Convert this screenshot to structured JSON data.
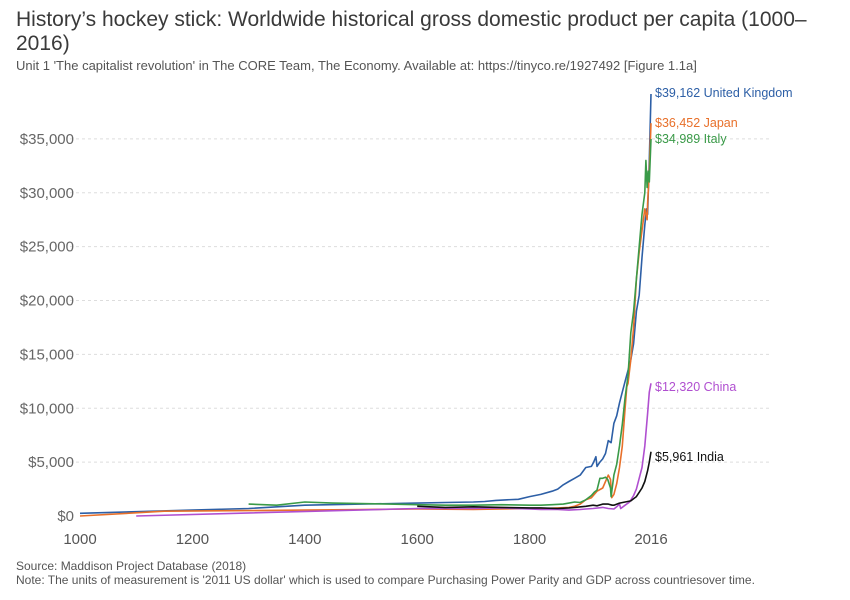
{
  "header": {
    "title": "History’s hockey stick: Worldwide historical gross domestic product per capita (1000–2016)",
    "subtitle": "Unit 1 'The capitalist revolution' in The CORE Team, The Economy. Available at: https://tinyco.re/1927492 [Figure 1.1a]"
  },
  "footer": {
    "source": "Source: Maddison Project Database (2018)",
    "note": "Note: The units of measurement is '2011 US dollar' which is used to compare Purchasing Power Parity and GDP across countriesover time."
  },
  "chart_data": {
    "type": "line",
    "xlim": [
      1000,
      2016
    ],
    "ylim": [
      0,
      40000
    ],
    "x_ticks": [
      {
        "value": 1000,
        "label": "1000"
      },
      {
        "value": 1200,
        "label": "1200"
      },
      {
        "value": 1400,
        "label": "1400"
      },
      {
        "value": 1600,
        "label": "1600"
      },
      {
        "value": 1800,
        "label": "1800"
      },
      {
        "value": 2016,
        "label": "2016"
      }
    ],
    "y_ticks": [
      {
        "value": 0,
        "label": "$0"
      },
      {
        "value": 5000,
        "label": "$5,000"
      },
      {
        "value": 10000,
        "label": "$10,000"
      },
      {
        "value": 15000,
        "label": "$15,000"
      },
      {
        "value": 20000,
        "label": "$20,000"
      },
      {
        "value": 25000,
        "label": "$25,000"
      },
      {
        "value": 30000,
        "label": "$30,000"
      },
      {
        "value": 35000,
        "label": "$35,000"
      }
    ],
    "grid": "horizontal dashed",
    "series": [
      {
        "name": "United Kingdom",
        "color": "#2d5fa6",
        "end_label": "$39,162 United Kingdom",
        "points": [
          [
            1000,
            250
          ],
          [
            1100,
            400
          ],
          [
            1200,
            550
          ],
          [
            1300,
            700
          ],
          [
            1400,
            1000
          ],
          [
            1500,
            1100
          ],
          [
            1600,
            1200
          ],
          [
            1650,
            1250
          ],
          [
            1700,
            1300
          ],
          [
            1720,
            1350
          ],
          [
            1740,
            1450
          ],
          [
            1760,
            1500
          ],
          [
            1780,
            1550
          ],
          [
            1800,
            1800
          ],
          [
            1820,
            2000
          ],
          [
            1840,
            2300
          ],
          [
            1850,
            2500
          ],
          [
            1860,
            2900
          ],
          [
            1870,
            3200
          ],
          [
            1880,
            3500
          ],
          [
            1890,
            3800
          ],
          [
            1900,
            4500
          ],
          [
            1910,
            4600
          ],
          [
            1914,
            5000
          ],
          [
            1918,
            5500
          ],
          [
            1920,
            4600
          ],
          [
            1925,
            5000
          ],
          [
            1930,
            5300
          ],
          [
            1935,
            5800
          ],
          [
            1940,
            7000
          ],
          [
            1945,
            6800
          ],
          [
            1950,
            8600
          ],
          [
            1955,
            9300
          ],
          [
            1960,
            10500
          ],
          [
            1965,
            11500
          ],
          [
            1970,
            12500
          ],
          [
            1975,
            13500
          ],
          [
            1980,
            14500
          ],
          [
            1985,
            16000
          ],
          [
            1990,
            19000
          ],
          [
            1995,
            20500
          ],
          [
            2000,
            24000
          ],
          [
            2005,
            27000
          ],
          [
            2008,
            28500
          ],
          [
            2010,
            28000
          ],
          [
            2013,
            33000
          ],
          [
            2016,
            39162
          ]
        ]
      },
      {
        "name": "Japan",
        "color": "#e8702a",
        "end_label": "$36,452 Japan",
        "points": [
          [
            1000,
            0
          ],
          [
            1150,
            450
          ],
          [
            1300,
            500
          ],
          [
            1400,
            550
          ],
          [
            1500,
            600
          ],
          [
            1600,
            650
          ],
          [
            1700,
            600
          ],
          [
            1750,
            650
          ],
          [
            1800,
            700
          ],
          [
            1820,
            700
          ],
          [
            1850,
            750
          ],
          [
            1870,
            800
          ],
          [
            1880,
            900
          ],
          [
            1890,
            1100
          ],
          [
            1900,
            1500
          ],
          [
            1910,
            1700
          ],
          [
            1920,
            2300
          ],
          [
            1930,
            2600
          ],
          [
            1935,
            3200
          ],
          [
            1940,
            3800
          ],
          [
            1944,
            3400
          ],
          [
            1946,
            1700
          ],
          [
            1950,
            2000
          ],
          [
            1955,
            3000
          ],
          [
            1960,
            4500
          ],
          [
            1965,
            6500
          ],
          [
            1970,
            10000
          ],
          [
            1973,
            12000
          ],
          [
            1975,
            12300
          ],
          [
            1980,
            14500
          ],
          [
            1985,
            17500
          ],
          [
            1990,
            22000
          ],
          [
            1995,
            24500
          ],
          [
            2000,
            26500
          ],
          [
            2005,
            28500
          ],
          [
            2009,
            27500
          ],
          [
            2010,
            29000
          ],
          [
            2013,
            32000
          ],
          [
            2016,
            36452
          ]
        ]
      },
      {
        "name": "Italy",
        "color": "#3a9a48",
        "end_label": "$34,989 Italy",
        "points": [
          [
            1300,
            1100
          ],
          [
            1350,
            1000
          ],
          [
            1400,
            1300
          ],
          [
            1450,
            1200
          ],
          [
            1500,
            1150
          ],
          [
            1550,
            1100
          ],
          [
            1600,
            1050
          ],
          [
            1650,
            1000
          ],
          [
            1700,
            1000
          ],
          [
            1750,
            1050
          ],
          [
            1800,
            1000
          ],
          [
            1820,
            1000
          ],
          [
            1840,
            1050
          ],
          [
            1860,
            1100
          ],
          [
            1870,
            1200
          ],
          [
            1880,
            1300
          ],
          [
            1890,
            1250
          ],
          [
            1900,
            1500
          ],
          [
            1910,
            1900
          ],
          [
            1915,
            2200
          ],
          [
            1920,
            2400
          ],
          [
            1925,
            3500
          ],
          [
            1930,
            3500
          ],
          [
            1935,
            3600
          ],
          [
            1939,
            3400
          ],
          [
            1944,
            2600
          ],
          [
            1945,
            1800
          ],
          [
            1950,
            3800
          ],
          [
            1955,
            4800
          ],
          [
            1960,
            6500
          ],
          [
            1965,
            8500
          ],
          [
            1970,
            11000
          ],
          [
            1975,
            13000
          ],
          [
            1980,
            17000
          ],
          [
            1985,
            19000
          ],
          [
            1990,
            22000
          ],
          [
            1995,
            25000
          ],
          [
            2000,
            28000
          ],
          [
            2005,
            30000
          ],
          [
            2007,
            33000
          ],
          [
            2009,
            30500
          ],
          [
            2011,
            32000
          ],
          [
            2013,
            31000
          ],
          [
            2016,
            34989
          ]
        ]
      },
      {
        "name": "China",
        "color": "#b04fd0",
        "end_label": "$12,320 China",
        "points": [
          [
            1100,
            0
          ],
          [
            1600,
            700
          ],
          [
            1700,
            700
          ],
          [
            1750,
            750
          ],
          [
            1800,
            650
          ],
          [
            1820,
            600
          ],
          [
            1850,
            600
          ],
          [
            1870,
            550
          ],
          [
            1890,
            600
          ],
          [
            1900,
            650
          ],
          [
            1913,
            700
          ],
          [
            1930,
            800
          ],
          [
            1940,
            700
          ],
          [
            1950,
            650
          ],
          [
            1955,
            850
          ],
          [
            1960,
            1100
          ],
          [
            1962,
            700
          ],
          [
            1970,
            1000
          ],
          [
            1978,
            1300
          ],
          [
            1985,
            1900
          ],
          [
            1990,
            2500
          ],
          [
            1995,
            3500
          ],
          [
            2000,
            4500
          ],
          [
            2005,
            6500
          ],
          [
            2010,
            9500
          ],
          [
            2013,
            11500
          ],
          [
            2016,
            12320
          ]
        ]
      },
      {
        "name": "India",
        "color": "#111111",
        "end_label": "$5,961 India",
        "points": [
          [
            1600,
            900
          ],
          [
            1650,
            800
          ],
          [
            1700,
            850
          ],
          [
            1750,
            800
          ],
          [
            1800,
            750
          ],
          [
            1820,
            750
          ],
          [
            1850,
            700
          ],
          [
            1870,
            750
          ],
          [
            1880,
            800
          ],
          [
            1900,
            900
          ],
          [
            1913,
            1000
          ],
          [
            1920,
            950
          ],
          [
            1930,
            1100
          ],
          [
            1940,
            1100
          ],
          [
            1947,
            1000
          ],
          [
            1950,
            1000
          ],
          [
            1960,
            1200
          ],
          [
            1970,
            1300
          ],
          [
            1980,
            1400
          ],
          [
            1990,
            1800
          ],
          [
            1995,
            2200
          ],
          [
            2000,
            2600
          ],
          [
            2005,
            3200
          ],
          [
            2010,
            4200
          ],
          [
            2013,
            5000
          ],
          [
            2016,
            5961
          ]
        ]
      }
    ]
  }
}
